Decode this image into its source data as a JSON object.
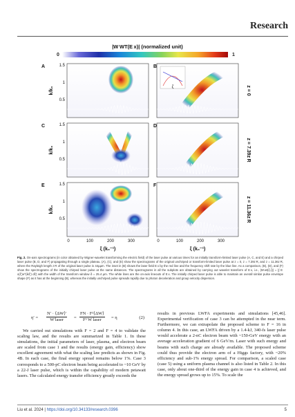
{
  "journal": "Research",
  "colorbar": {
    "title": "|W WT(E x)| (normalized unit)",
    "min_label": "0",
    "max_label": "1"
  },
  "figure": {
    "panels": [
      "A",
      "B",
      "C",
      "D",
      "E",
      "F"
    ],
    "y_axis_label": "k/k₀",
    "x_axis_label": "ξ (k₀⁻¹)",
    "y_ticks": [
      "1.5",
      "1",
      "0.5"
    ],
    "x_ticks": [
      "0",
      "100",
      "200",
      "300"
    ],
    "row_labels": [
      "z = 0",
      "z = 7.39z R",
      "z = 11.36z R"
    ],
    "inset_label": "ζ"
  },
  "caption": {
    "lead": "Fig. 2.",
    "text": "On-axis spectrograms (in color obtained by Wigner-wavelet transforming the electric field) of the laser pulse at various times for an initially transform-limited laser pulse (A, C, and E) and a chirped laser pulse (B, D, and F) propagating through a single plateau. (A), (C), and (E) show the spectrograms of the original unchirped or transform-limited laser pulse at z = 0, z = 7.39z R, and z = 11.36z R, where the Rayleigh length z R of the original laser pulse is 44μµm. The inset in (B) shows the laser field E x by the red line and the frequency shift rate by the blue line. As a comparison, (B), (D), and (F) show the spectrograms of the initially chirped laser pulse at the same distances. The spectrograms in all the subplots are obtained by carrying out wavelet transform of E x, i.e., |W wt(ξ,ζ)| = |∫ E x(ξ′)e^(ikξ′) dξ′| with the width of the transform window δ = 25.4 µm. The white lines are the on-axis lineouts of E x. The initially chirped laser pulse is able to maintain an overall similar pulse envelope shape (F) as it has at the beginning (B), whereas the initially unchirped pulse spreads rapidly due to photon deceleration and group velocity dispersion."
  },
  "body": {
    "eq_lhs": "η′ =",
    "eq_frac1_top": "N′ · ⟨ΔW⟩′",
    "eq_frac1_bot": "W′laser",
    "eq_mid": "=",
    "eq_frac2_top": "FN · F²⟨ΔW⟩",
    "eq_frac2_bot": "F³ W laser",
    "eq_rhs": "= η",
    "eq_number": "(2)",
    "left_para": "We carried out simulations with F = 2 and F = 4 to validate the scaling law, and the results are summarized in Table 1. In these simulations, the initial parameters of laser, plasma, and electron beam are scaled from case 1 and the results (energy gain, efficiency) show excellent agreement with what the scaling law predicts as shown in Fig. 4B. In each case, the final energy spread remains below 1%. Case 3 corresponds to a 500-pC electron beam being accelerated to ~10 GeV by a 22-J laser pulse, which is within the capability of modern petawatt lasers. The calculated energy transfer efficiency greatly exceeds the",
    "right_para": "results in previous LWFA experiments and simulations [45,46]. Experimental verification of case 3 can be attempted in the near term. Furthermore, we can extrapolate the proposed scheme to F = 16 in column 4. In this case, an LWFA driven by a 1.4-kJ, 340-fs laser pulse would accelerate a 2-nC electron beam with ~150-GeV energy with an average acceleration gradient of 6 GeV/m. Laser with such energy and beams with such charge are already available. The proposed scheme could thus provide the electron arm of a Higgs factory, with ~20% efficiency and sub-1% energy spread. For comparison, a scaled case (case 5) using a uniform plasma channel is also listed in Table 2. In this case, only about one-third of the energy gain in case 4 is achieved, and the energy spread grows up to 15%. To scale the"
  },
  "footer": {
    "citation": "Liu et al. 2024 | ",
    "doi": "https://doi.org/10.34133/research.0396",
    "page": "5"
  }
}
